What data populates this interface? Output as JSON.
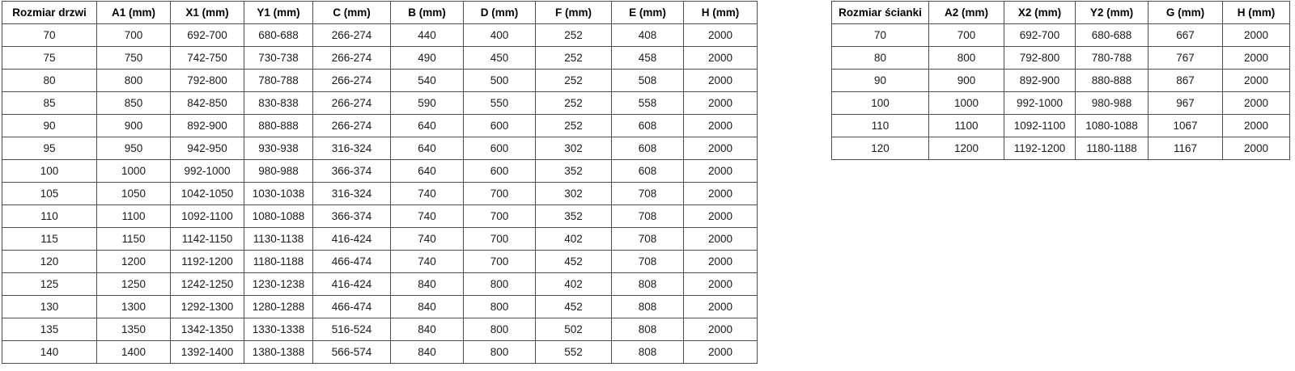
{
  "tables": [
    {
      "name": "door-size-table",
      "headers": [
        "Rozmiar drzwi",
        "A1 (mm)",
        "X1 (mm)",
        "Y1 (mm)",
        "C (mm)",
        "B (mm)",
        "D (mm)",
        "F (mm)",
        "E (mm)",
        "H (mm)"
      ],
      "rows": [
        [
          "70",
          "700",
          "692-700",
          "680-688",
          "266-274",
          "440",
          "400",
          "252",
          "408",
          "2000"
        ],
        [
          "75",
          "750",
          "742-750",
          "730-738",
          "266-274",
          "490",
          "450",
          "252",
          "458",
          "2000"
        ],
        [
          "80",
          "800",
          "792-800",
          "780-788",
          "266-274",
          "540",
          "500",
          "252",
          "508",
          "2000"
        ],
        [
          "85",
          "850",
          "842-850",
          "830-838",
          "266-274",
          "590",
          "550",
          "252",
          "558",
          "2000"
        ],
        [
          "90",
          "900",
          "892-900",
          "880-888",
          "266-274",
          "640",
          "600",
          "252",
          "608",
          "2000"
        ],
        [
          "95",
          "950",
          "942-950",
          "930-938",
          "316-324",
          "640",
          "600",
          "302",
          "608",
          "2000"
        ],
        [
          "100",
          "1000",
          "992-1000",
          "980-988",
          "366-374",
          "640",
          "600",
          "352",
          "608",
          "2000"
        ],
        [
          "105",
          "1050",
          "1042-1050",
          "1030-1038",
          "316-324",
          "740",
          "700",
          "302",
          "708",
          "2000"
        ],
        [
          "110",
          "1100",
          "1092-1100",
          "1080-1088",
          "366-374",
          "740",
          "700",
          "352",
          "708",
          "2000"
        ],
        [
          "115",
          "1150",
          "1142-1150",
          "1130-1138",
          "416-424",
          "740",
          "700",
          "402",
          "708",
          "2000"
        ],
        [
          "120",
          "1200",
          "1192-1200",
          "1180-1188",
          "466-474",
          "740",
          "700",
          "452",
          "708",
          "2000"
        ],
        [
          "125",
          "1250",
          "1242-1250",
          "1230-1238",
          "416-424",
          "840",
          "800",
          "402",
          "808",
          "2000"
        ],
        [
          "130",
          "1300",
          "1292-1300",
          "1280-1288",
          "466-474",
          "840",
          "800",
          "452",
          "808",
          "2000"
        ],
        [
          "135",
          "1350",
          "1342-1350",
          "1330-1338",
          "516-524",
          "840",
          "800",
          "502",
          "808",
          "2000"
        ],
        [
          "140",
          "1400",
          "1392-1400",
          "1380-1388",
          "566-574",
          "840",
          "800",
          "552",
          "808",
          "2000"
        ]
      ]
    },
    {
      "name": "wall-panel-size-table",
      "headers": [
        "Rozmiar ścianki",
        "A2 (mm)",
        "X2 (mm)",
        "Y2 (mm)",
        "G (mm)",
        "H (mm)"
      ],
      "rows": [
        [
          "70",
          "700",
          "692-700",
          "680-688",
          "667",
          "2000"
        ],
        [
          "80",
          "800",
          "792-800",
          "780-788",
          "767",
          "2000"
        ],
        [
          "90",
          "900",
          "892-900",
          "880-888",
          "867",
          "2000"
        ],
        [
          "100",
          "1000",
          "992-1000",
          "980-988",
          "967",
          "2000"
        ],
        [
          "110",
          "1100",
          "1092-1100",
          "1080-1088",
          "1067",
          "2000"
        ],
        [
          "120",
          "1200",
          "1192-1200",
          "1180-1188",
          "1167",
          "2000"
        ]
      ]
    }
  ]
}
